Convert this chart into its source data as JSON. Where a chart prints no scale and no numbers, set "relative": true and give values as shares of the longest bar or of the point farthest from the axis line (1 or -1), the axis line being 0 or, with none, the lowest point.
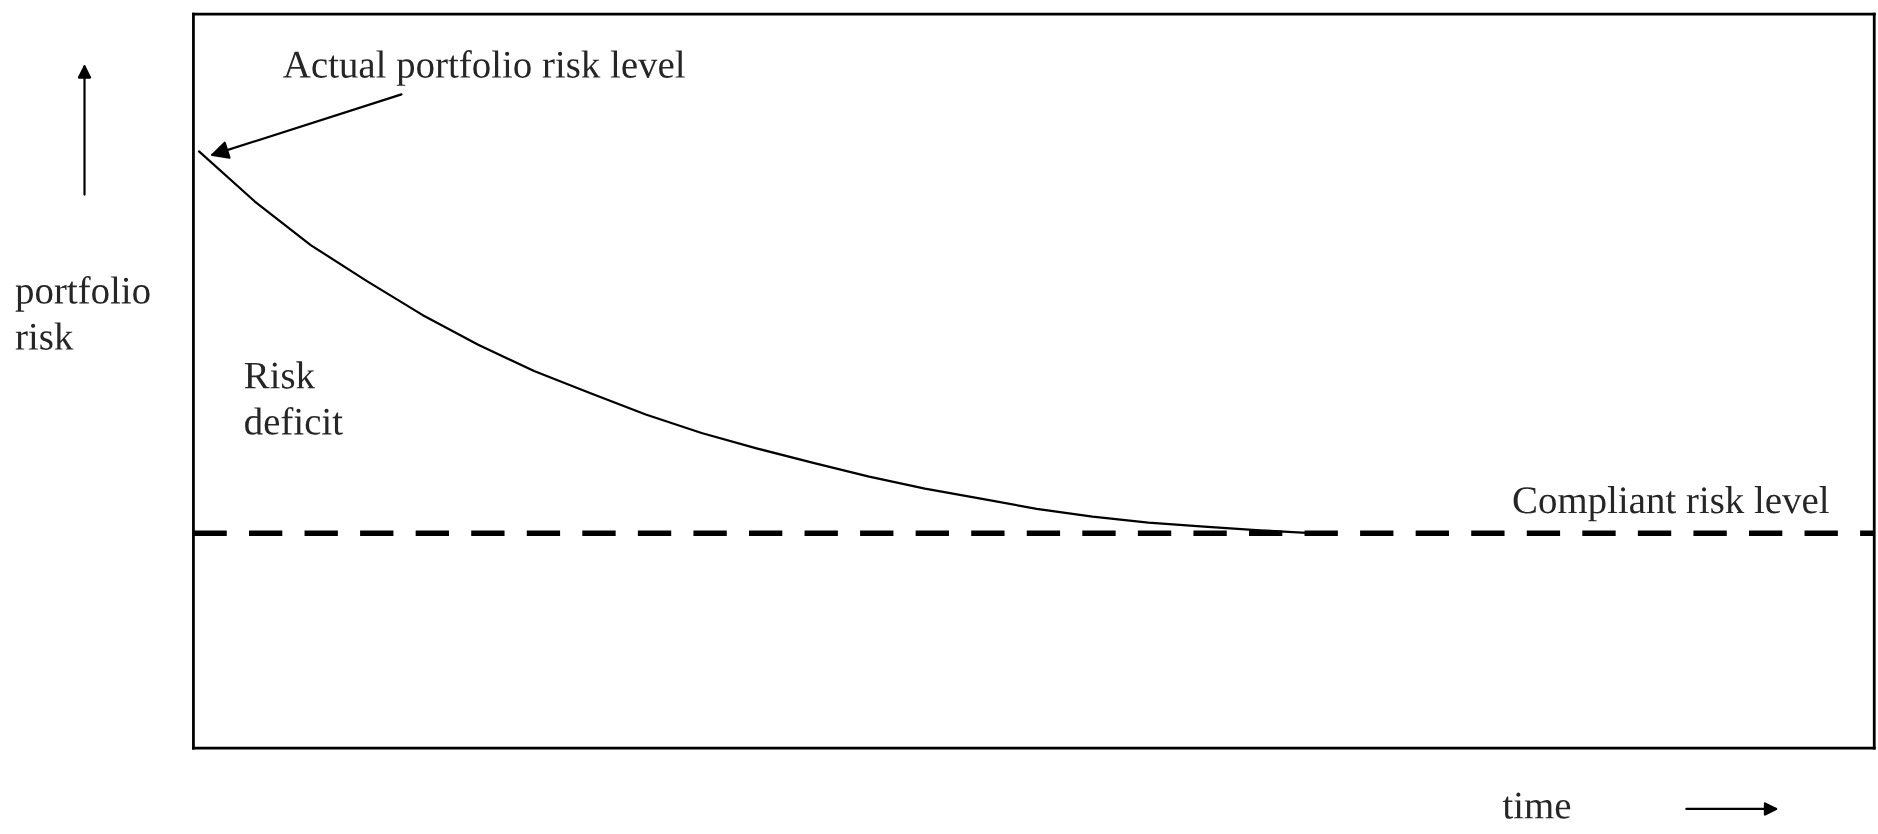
{
  "chart_data": {
    "type": "line",
    "relative": true,
    "xlabel": "time",
    "ylabel": "portfolio\nrisk",
    "categories": [
      null,
      null,
      null,
      null,
      null,
      null,
      null,
      null,
      null,
      null,
      null,
      null,
      null,
      null,
      null,
      null,
      null,
      null,
      null,
      null,
      null,
      null,
      null,
      null,
      null,
      null,
      null,
      null,
      null,
      null,
      null
    ],
    "series": [
      {
        "color": "#000000",
        "line_style": "solid",
        "values": [
          1.0,
          0.916,
          0.843,
          0.783,
          0.726,
          0.676,
          0.632,
          0.595,
          0.559,
          0.528,
          0.502,
          0.478,
          0.455,
          0.435,
          0.418,
          0.401,
          0.388,
          0.378,
          0.371,
          0.365,
          0.36,
          null,
          null,
          null,
          null,
          null,
          null,
          null,
          null,
          null,
          null
        ]
      }
    ],
    "ref_lines": [
      {
        "axis": "y",
        "value": 0.36,
        "label": "Compliant risk level",
        "color": "#000000",
        "line_style": "dashed"
      }
    ],
    "annotations": [
      "Actual portfolio risk level",
      "Risk\ndeficit"
    ],
    "marker": "none"
  }
}
